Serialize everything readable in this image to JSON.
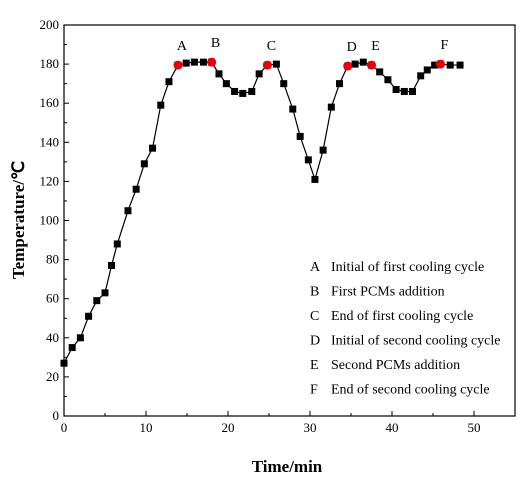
{
  "chart_data": {
    "type": "line",
    "xlabel": "Time/min",
    "ylabel": "Temperature/℃",
    "xlim": [
      0,
      55
    ],
    "ylim": [
      0,
      200
    ],
    "x_ticks": [
      "0",
      "10",
      "20",
      "30",
      "40",
      "50"
    ],
    "y_ticks": [
      "0",
      "20",
      "40",
      "60",
      "80",
      "100",
      "120",
      "140",
      "160",
      "180",
      "200"
    ],
    "marker_color": "#000000",
    "highlight_color": "#e8000b",
    "series": [
      {
        "x": [
          0,
          1,
          2,
          3,
          4,
          5,
          5.8,
          6.5,
          7.8,
          8.8,
          9.8,
          10.8,
          11.8,
          12.8,
          13.9,
          14.9,
          15.9,
          17,
          18,
          18.9,
          19.8,
          20.8,
          21.8,
          22.9,
          23.8,
          24.8,
          25.9,
          26.8,
          27.9,
          28.8,
          29.8,
          30.6,
          31.6,
          32.6,
          33.6,
          34.6,
          35.5,
          36.5,
          37.5,
          38.5,
          39.5,
          40.5,
          41.5,
          42.5,
          43.5,
          44.3,
          45.2,
          45.9,
          47.1,
          48.3
        ],
        "y": [
          27,
          35,
          40,
          51,
          59,
          63,
          77,
          88,
          105,
          116,
          129,
          137,
          159,
          171,
          179.5,
          180.5,
          181,
          181,
          181,
          175,
          170,
          166,
          165,
          166,
          175,
          179.5,
          180,
          170,
          157,
          143,
          131,
          121,
          136,
          158,
          170,
          179,
          180,
          181,
          179.5,
          176,
          172,
          167,
          166,
          166,
          174,
          177,
          179.5,
          180,
          179.5,
          179.5
        ]
      }
    ],
    "highlight_points": [
      {
        "label": "A",
        "x": 13.9,
        "y": 179.5
      },
      {
        "label": "B",
        "x": 18,
        "y": 181
      },
      {
        "label": "C",
        "x": 24.8,
        "y": 179.5
      },
      {
        "label": "D",
        "x": 34.6,
        "y": 179
      },
      {
        "label": "E",
        "x": 37.5,
        "y": 179.5
      },
      {
        "label": "F",
        "x": 45.9,
        "y": 180
      }
    ],
    "annotations": [
      {
        "letter": "A",
        "text": "Initial of first cooling cycle"
      },
      {
        "letter": "B",
        "text": "First PCMs addition"
      },
      {
        "letter": "C",
        "text": "End of first cooling cycle"
      },
      {
        "letter": "D",
        "text": "Initial of second cooling cycle"
      },
      {
        "letter": "E",
        "text": "Second PCMs addition"
      },
      {
        "letter": "F",
        "text": "End of second cooling cycle"
      }
    ]
  }
}
